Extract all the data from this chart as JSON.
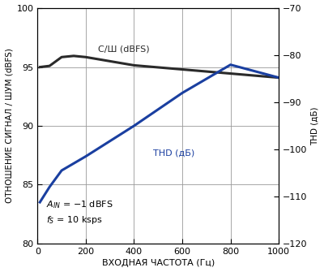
{
  "xlabel": "ВХОДНАЯ ЧАСТОТА (Гц)",
  "ylabel_left": "ОТНОШЕНИЕ СИГНАЛ / ШУМ (dBFS)",
  "ylabel_right": "THD (дБ)",
  "xlim": [
    0,
    1000
  ],
  "ylim_left": [
    80,
    100
  ],
  "ylim_right": [
    -120,
    -70
  ],
  "xticks": [
    0,
    200,
    400,
    600,
    800,
    1000
  ],
  "yticks_left": [
    80,
    85,
    90,
    95,
    100
  ],
  "yticks_right": [
    -120,
    -110,
    -100,
    -90,
    -80,
    -70
  ],
  "snr_x": [
    10,
    50,
    100,
    150,
    200,
    400,
    600,
    800,
    1000
  ],
  "snr_y": [
    95.0,
    95.1,
    95.85,
    95.95,
    95.85,
    95.15,
    94.8,
    94.45,
    94.1
  ],
  "thd_x": [
    10,
    50,
    100,
    200,
    400,
    600,
    800,
    1000
  ],
  "thd_y": [
    83.5,
    84.8,
    86.2,
    87.4,
    90.0,
    92.8,
    95.2,
    94.1
  ],
  "snr_color": "#2a2a2a",
  "thd_color": "#1a3fa0",
  "snr_label": "С/Ш (dBFS)",
  "thd_label": "THD (дБ)",
  "annot_line1": "A",
  "annot_line2": "f",
  "grid_color": "#999999",
  "bg_color": "#ffffff",
  "linewidth": 2.2,
  "fontsize_ylabel": 7.5,
  "fontsize_xlabel": 8,
  "fontsize_ticks": 8,
  "fontsize_annot": 8,
  "fontsize_label": 8
}
